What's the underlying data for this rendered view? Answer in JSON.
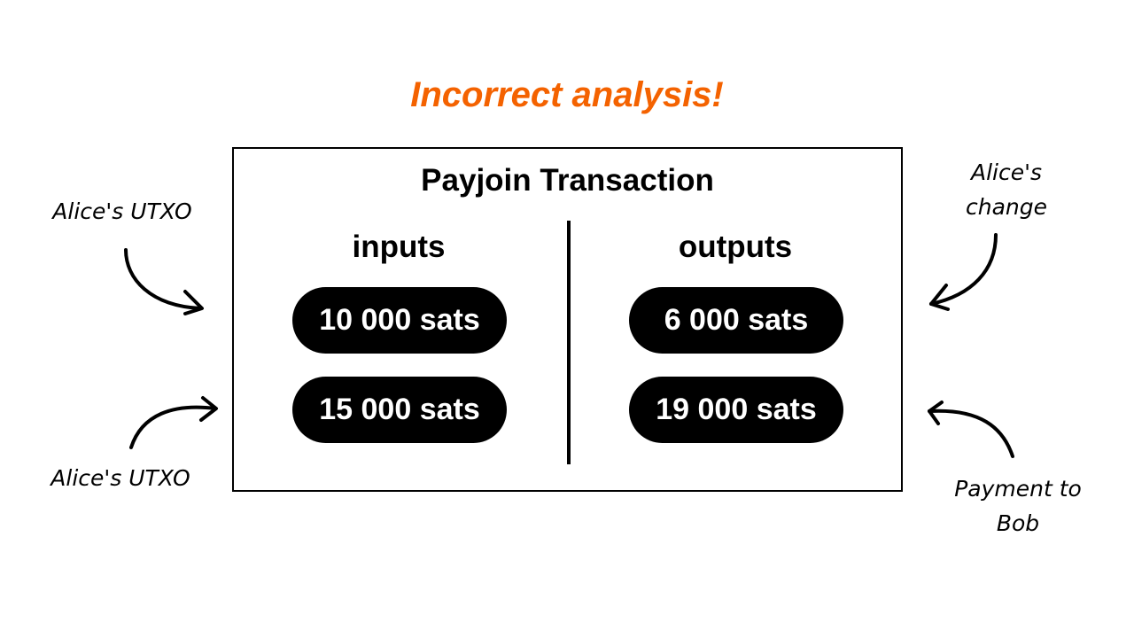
{
  "heading": "Incorrect analysis!",
  "transaction": {
    "title": "Payjoin Transaction",
    "inputs": {
      "label": "inputs",
      "values": [
        "10 000 sats",
        "15 000 sats"
      ]
    },
    "outputs": {
      "label": "outputs",
      "values": [
        "6 000 sats",
        "19 000 sats"
      ]
    }
  },
  "annotations": {
    "input_top": "Alice's UTXO",
    "input_bottom": "Alice's UTXO",
    "output_top_line1": "Alice's",
    "output_top_line2": "change",
    "output_bottom_line1": "Payment to",
    "output_bottom_line2": "Bob"
  },
  "colors": {
    "heading": "#f46200",
    "pill_background": "#000000",
    "pill_text": "#ffffff"
  }
}
